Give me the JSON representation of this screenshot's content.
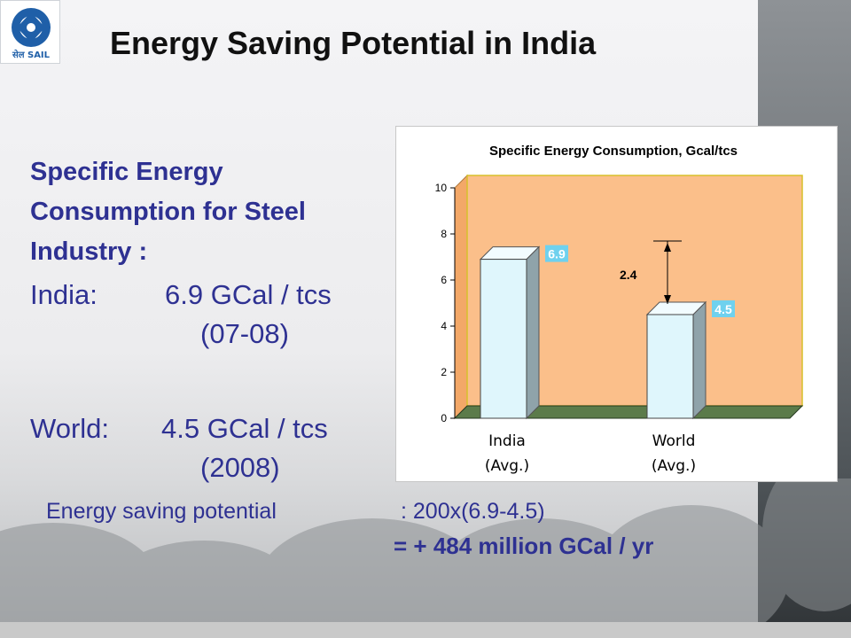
{
  "logo": {
    "text": "सेल SAIL"
  },
  "title": "Energy Saving Potential in India",
  "section_heading": "Specific Energy Consumption for Steel Industry :",
  "india": {
    "label": "India:",
    "value": "6.9 GCal / tcs",
    "period": "(07-08)"
  },
  "world": {
    "label": "World:",
    "value": "4.5 GCal / tcs",
    "period": "(2008)"
  },
  "potential": {
    "label": "Energy saving potential",
    "expression": ": 200x(6.9-4.5)",
    "result": "= + 484 million GCal / yr"
  },
  "chart_data": {
    "type": "bar",
    "title": "Specific Energy Consumption, Gcal/tcs",
    "categories": [
      "India",
      "World"
    ],
    "category_sublabels": [
      "(Avg.)",
      "(Avg.)"
    ],
    "values": [
      6.9,
      4.5
    ],
    "data_labels": [
      "6.9",
      "4.5"
    ],
    "ylim": [
      0,
      10
    ],
    "yticks": [
      "0",
      "2",
      "4",
      "6",
      "8",
      "10"
    ],
    "annotation": "2.4",
    "grid": false,
    "colors": {
      "bar": "#dff6fc",
      "wall": "#fbbf8a",
      "floor": "#3f5f36",
      "label_bg": "#6fd1ee"
    }
  }
}
